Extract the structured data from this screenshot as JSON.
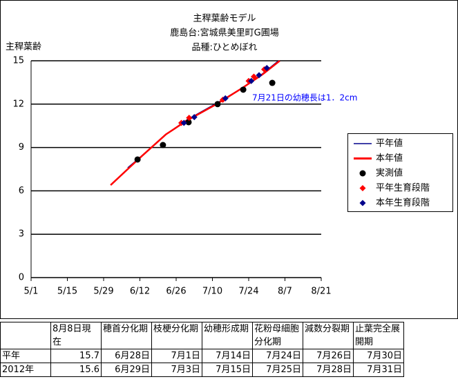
{
  "chart_data": {
    "type": "line",
    "title": [
      "主稈葉齢モデル",
      "鹿島台:宮城県美里町G圃場",
      "品種:ひとめぼれ"
    ],
    "y_label": "主稈葉齢",
    "annotation": "7月21日の幼穂長は1．2cm",
    "xlim": [
      0,
      112
    ],
    "xticks": [
      {
        "value": 0,
        "label": "5/1"
      },
      {
        "value": 14,
        "label": "5/15"
      },
      {
        "value": 28,
        "label": "5/29"
      },
      {
        "value": 42,
        "label": "6/12"
      },
      {
        "value": 56,
        "label": "6/26"
      },
      {
        "value": 70,
        "label": "7/10"
      },
      {
        "value": 84,
        "label": "7/24"
      },
      {
        "value": 98,
        "label": "8/7"
      },
      {
        "value": 112,
        "label": "8/21"
      }
    ],
    "ylim": [
      0,
      15
    ],
    "yticks": [
      0,
      3,
      6,
      9,
      12,
      15
    ],
    "grid": true,
    "series": [
      {
        "name": "平年値",
        "color": "#00008b",
        "marker": "none",
        "x": [
          37.3,
          41.3,
          52,
          60,
          72,
          81.3,
          89.3,
          95.5
        ],
        "values": [
          7.6,
          8.2,
          9.9,
          10.9,
          12.1,
          13.1,
          14.1,
          15
        ]
      },
      {
        "name": "本年値",
        "color": "#ff0000",
        "marker": "none",
        "x": [
          30.7,
          41.3,
          52,
          60,
          72,
          81.3,
          89.3,
          96
        ],
        "values": [
          6.4,
          8.17,
          9.9,
          10.85,
          12.04,
          13.09,
          14.05,
          15
        ]
      },
      {
        "name": "実測値",
        "color": "#000000",
        "marker": "circle",
        "x": [
          41.1,
          50.9,
          60.8,
          72,
          81.9,
          93.1
        ],
        "values": [
          8.17,
          9.17,
          10.75,
          12.0,
          13.0,
          13.47
        ]
      },
      {
        "name": "平年生育段階",
        "color": "#ff0000",
        "marker": "diamond",
        "x": [
          58,
          61,
          74,
          84,
          86,
          90
        ],
        "values": [
          10.7,
          11.05,
          12.3,
          13.6,
          13.9,
          14.4
        ]
      },
      {
        "name": "本年生育段階",
        "color": "#00008b",
        "marker": "diamond",
        "x": [
          59,
          63,
          75,
          85,
          88,
          91
        ],
        "values": [
          10.7,
          11.1,
          12.4,
          13.6,
          14.0,
          14.5
        ]
      }
    ]
  },
  "table": {
    "header": [
      "8月8日現在",
      "穂首分化期",
      "枝梗分化期",
      "幼穂形成期",
      "花粉母細胞分化期",
      "減数分裂期",
      "止葉完全展開期"
    ],
    "rows": [
      [
        "平年",
        15.7,
        "6月28日",
        "7月1日",
        "7月14日",
        "7月24日",
        "7月26日",
        "7月30日"
      ],
      [
        "2012年",
        15.6,
        "6月29日",
        "7月3日",
        "7月15日",
        "7月25日",
        "7月28日",
        "7月31日"
      ]
    ]
  }
}
